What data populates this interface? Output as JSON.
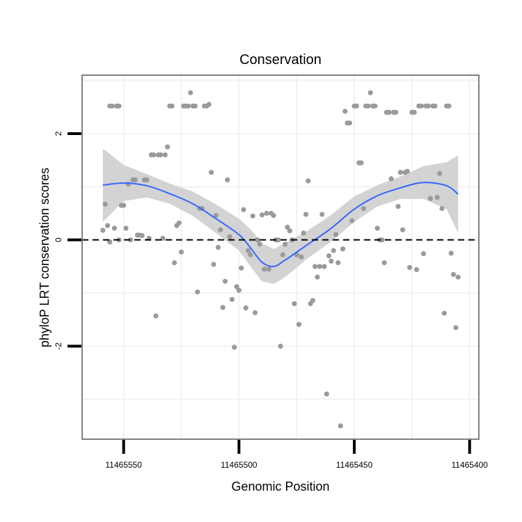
{
  "chart_data": {
    "type": "scatter",
    "title": "Conservation",
    "xlabel": "Genomic Position",
    "ylabel": "phyloP LRT conservation scores",
    "x_reversed": true,
    "xlim": [
      11465568,
      11465396
    ],
    "ylim": [
      -3.75,
      3.1
    ],
    "x_ticks": [
      11465550,
      11465500,
      11465450,
      11465400
    ],
    "x_tick_labels": [
      "11465550",
      "11465500",
      "11465450",
      "11465400"
    ],
    "y_ticks": [
      -2,
      0,
      2
    ],
    "y_tick_labels": [
      "-2",
      "0",
      "2"
    ],
    "grid": true,
    "reference_line": {
      "y": 0,
      "style": "dashed",
      "color": "#000000"
    },
    "colors": {
      "points": "#9a9a9a",
      "smooth_line": "#3366ff",
      "ribbon": "#d3d3d3",
      "grid": "#f2f2f2",
      "panel_border": "#7f7f7f"
    },
    "series": [
      {
        "name": "scores",
        "points": [
          [
            11465559,
            0.18
          ],
          [
            11465558,
            0.67
          ],
          [
            11465557,
            0.27
          ],
          [
            11465556,
            -0.04
          ],
          [
            11465556,
            2.52
          ],
          [
            11465555,
            2.52
          ],
          [
            11465554,
            0.22
          ],
          [
            11465553,
            2.52
          ],
          [
            11465552,
            0.0
          ],
          [
            11465552,
            2.52
          ],
          [
            11465551,
            0.65
          ],
          [
            11465550,
            0.65
          ],
          [
            11465549,
            0.22
          ],
          [
            11465548,
            1.05
          ],
          [
            11465547,
            0.0
          ],
          [
            11465546,
            1.13
          ],
          [
            11465545,
            1.13
          ],
          [
            11465544,
            0.09
          ],
          [
            11465543,
            0.09
          ],
          [
            11465542,
            0.08
          ],
          [
            11465541,
            1.13
          ],
          [
            11465540,
            1.13
          ],
          [
            11465539,
            0.03
          ],
          [
            11465538,
            1.6
          ],
          [
            11465537,
            1.6
          ],
          [
            11465536,
            -1.43
          ],
          [
            11465535,
            1.6
          ],
          [
            11465534,
            1.6
          ],
          [
            11465533,
            0.03
          ],
          [
            11465532,
            1.6
          ],
          [
            11465531,
            1.75
          ],
          [
            11465530,
            2.52
          ],
          [
            11465529,
            2.52
          ],
          [
            11465528,
            -0.43
          ],
          [
            11465527,
            0.27
          ],
          [
            11465526,
            0.32
          ],
          [
            11465525,
            -0.23
          ],
          [
            11465524,
            2.52
          ],
          [
            11465523,
            2.52
          ],
          [
            11465522,
            2.52
          ],
          [
            11465521,
            2.77
          ],
          [
            11465520,
            2.52
          ],
          [
            11465519,
            2.52
          ],
          [
            11465518,
            -0.98
          ],
          [
            11465517,
            0.59
          ],
          [
            11465516,
            0.59
          ],
          [
            11465515,
            2.52
          ],
          [
            11465514,
            2.52
          ],
          [
            11465513,
            2.55
          ],
          [
            11465512,
            1.27
          ],
          [
            11465511,
            -0.46
          ],
          [
            11465510,
            0.46
          ],
          [
            11465509,
            -0.14
          ],
          [
            11465508,
            0.19
          ],
          [
            11465507,
            -1.27
          ],
          [
            11465506,
            -0.78
          ],
          [
            11465505,
            1.13
          ],
          [
            11465504,
            0.06
          ],
          [
            11465503,
            -1.12
          ],
          [
            11465502,
            -2.02
          ],
          [
            11465501,
            -0.88
          ],
          [
            11465500,
            -0.95
          ],
          [
            11465499,
            -0.53
          ],
          [
            11465498,
            0.57
          ],
          [
            11465497,
            -1.28
          ],
          [
            11465496,
            -0.2
          ],
          [
            11465495,
            -0.28
          ],
          [
            11465494,
            0.45
          ],
          [
            11465493,
            -1.37
          ],
          [
            11465492,
            0.0
          ],
          [
            11465491,
            -0.08
          ],
          [
            11465490,
            0.47
          ],
          [
            11465489,
            -0.55
          ],
          [
            11465488,
            0.5
          ],
          [
            11465487,
            -0.55
          ],
          [
            11465486,
            0.5
          ],
          [
            11465485,
            0.46
          ],
          [
            11465484,
            0.0
          ],
          [
            11465483,
            0.0
          ],
          [
            11465482,
            -2.0
          ],
          [
            11465481,
            -0.28
          ],
          [
            11465480,
            -0.08
          ],
          [
            11465479,
            0.24
          ],
          [
            11465478,
            0.17
          ],
          [
            11465477,
            0.0
          ],
          [
            11465476,
            -1.2
          ],
          [
            11465475,
            -0.28
          ],
          [
            11465474,
            -1.59
          ],
          [
            11465473,
            -0.32
          ],
          [
            11465472,
            0.13
          ],
          [
            11465471,
            0.48
          ],
          [
            11465470,
            1.11
          ],
          [
            11465469,
            -1.2
          ],
          [
            11465468,
            -1.14
          ],
          [
            11465467,
            -0.5
          ],
          [
            11465466,
            -0.7
          ],
          [
            11465465,
            -0.5
          ],
          [
            11465464,
            0.48
          ],
          [
            11465463,
            -0.5
          ],
          [
            11465462,
            -2.9
          ],
          [
            11465461,
            -0.3
          ],
          [
            11465460,
            -0.4
          ],
          [
            11465459,
            -0.2
          ],
          [
            11465458,
            0.1
          ],
          [
            11465457,
            -0.43
          ],
          [
            11465456,
            -3.5
          ],
          [
            11465455,
            -0.17
          ],
          [
            11465454,
            2.42
          ],
          [
            11465453,
            2.2
          ],
          [
            11465452,
            2.2
          ],
          [
            11465451,
            0.36
          ],
          [
            11465450,
            2.52
          ],
          [
            11465449,
            2.52
          ],
          [
            11465448,
            1.45
          ],
          [
            11465447,
            1.45
          ],
          [
            11465446,
            0.59
          ],
          [
            11465445,
            2.52
          ],
          [
            11465444,
            2.52
          ],
          [
            11465443,
            2.77
          ],
          [
            11465442,
            2.52
          ],
          [
            11465441,
            2.52
          ],
          [
            11465440,
            0.22
          ],
          [
            11465439,
            0.0
          ],
          [
            11465438,
            0.0
          ],
          [
            11465437,
            -0.43
          ],
          [
            11465436,
            2.4
          ],
          [
            11465435,
            2.4
          ],
          [
            11465434,
            1.15
          ],
          [
            11465433,
            2.4
          ],
          [
            11465432,
            2.4
          ],
          [
            11465431,
            0.63
          ],
          [
            11465430,
            1.27
          ],
          [
            11465429,
            0.19
          ],
          [
            11465428,
            1.27
          ],
          [
            11465427,
            1.29
          ],
          [
            11465426,
            -0.52
          ],
          [
            11465425,
            2.4
          ],
          [
            11465424,
            2.4
          ],
          [
            11465423,
            -0.56
          ],
          [
            11465422,
            2.52
          ],
          [
            11465421,
            2.52
          ],
          [
            11465420,
            -0.26
          ],
          [
            11465419,
            2.52
          ],
          [
            11465418,
            2.52
          ],
          [
            11465417,
            0.78
          ],
          [
            11465416,
            2.52
          ],
          [
            11465415,
            2.52
          ],
          [
            11465414,
            0.8
          ],
          [
            11465413,
            1.25
          ],
          [
            11465412,
            0.59
          ],
          [
            11465411,
            -1.38
          ],
          [
            11465410,
            2.52
          ],
          [
            11465409,
            2.52
          ],
          [
            11465408,
            -0.25
          ],
          [
            11465407,
            -0.65
          ],
          [
            11465406,
            -1.65
          ],
          [
            11465405,
            -0.7
          ]
        ]
      },
      {
        "name": "smooth",
        "x": [
          11465559,
          11465550,
          11465540,
          11465530,
          11465520,
          11465510,
          11465500,
          11465495,
          11465490,
          11465485,
          11465480,
          11465470,
          11465460,
          11465450,
          11465440,
          11465430,
          11465420,
          11465410,
          11465405
        ],
        "y": [
          1.03,
          1.07,
          1.02,
          0.87,
          0.68,
          0.4,
          0.1,
          -0.15,
          -0.42,
          -0.5,
          -0.38,
          -0.08,
          0.22,
          0.58,
          0.83,
          0.98,
          1.08,
          1.02,
          0.86
        ],
        "ci_lower": [
          0.34,
          0.73,
          0.8,
          0.68,
          0.45,
          0.13,
          -0.2,
          -0.5,
          -0.78,
          -0.83,
          -0.7,
          -0.34,
          -0.03,
          0.34,
          0.63,
          0.77,
          0.77,
          0.58,
          0.13
        ],
        "ci_upper": [
          1.72,
          1.41,
          1.24,
          1.06,
          0.91,
          0.67,
          0.4,
          0.2,
          -0.06,
          -0.17,
          -0.06,
          0.18,
          0.47,
          0.82,
          1.03,
          1.19,
          1.39,
          1.46,
          1.59
        ]
      }
    ]
  }
}
